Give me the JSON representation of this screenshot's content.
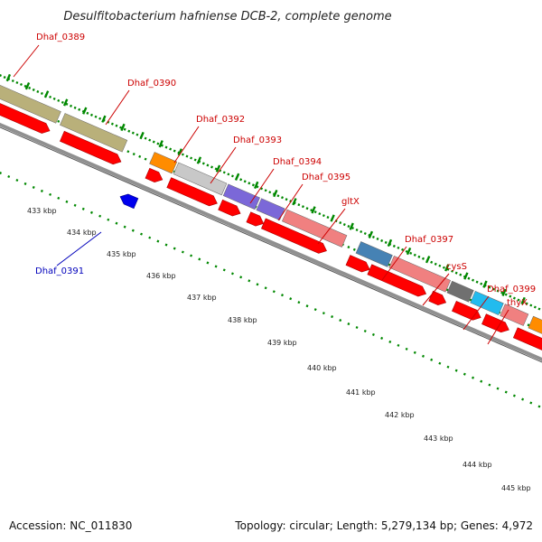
{
  "title": "Desulfitobacterium hafniense DCB-2, complete genome",
  "footer": {
    "accession": "Accession: NC_011830",
    "topology": "Topology: circular; Length: 5,279,134 bp; Genes: 4,972"
  },
  "colors": {
    "gene_label": "#cc0000",
    "reverse_label": "#0000bb",
    "cds": "#ff0000",
    "reverse_cds": "#0000ee",
    "backbone": "#909090",
    "tick": "#008800"
  },
  "gene_labels": [
    {
      "text": "Dhaf_0389",
      "strand": "forward"
    },
    {
      "text": "Dhaf_0390",
      "strand": "forward"
    },
    {
      "text": "Dhaf_0392",
      "strand": "forward"
    },
    {
      "text": "Dhaf_0393",
      "strand": "forward"
    },
    {
      "text": "Dhaf_0394",
      "strand": "forward"
    },
    {
      "text": "Dhaf_0395",
      "strand": "forward"
    },
    {
      "text": "gltX",
      "strand": "forward"
    },
    {
      "text": "Dhaf_0397",
      "strand": "forward"
    },
    {
      "text": "cysS",
      "strand": "forward"
    },
    {
      "text": "Dhaf_0399",
      "strand": "forward"
    },
    {
      "text": "thyX",
      "strand": "forward"
    },
    {
      "text": "Dhaf_0391",
      "strand": "reverse"
    }
  ],
  "ticks": [
    "433 kbp",
    "434 kbp",
    "435 kbp",
    "436 kbp",
    "437 kbp",
    "438 kbp",
    "439 kbp",
    "440 kbp",
    "441 kbp",
    "442 kbp",
    "443 kbp",
    "444 kbp",
    "445 kbp"
  ]
}
